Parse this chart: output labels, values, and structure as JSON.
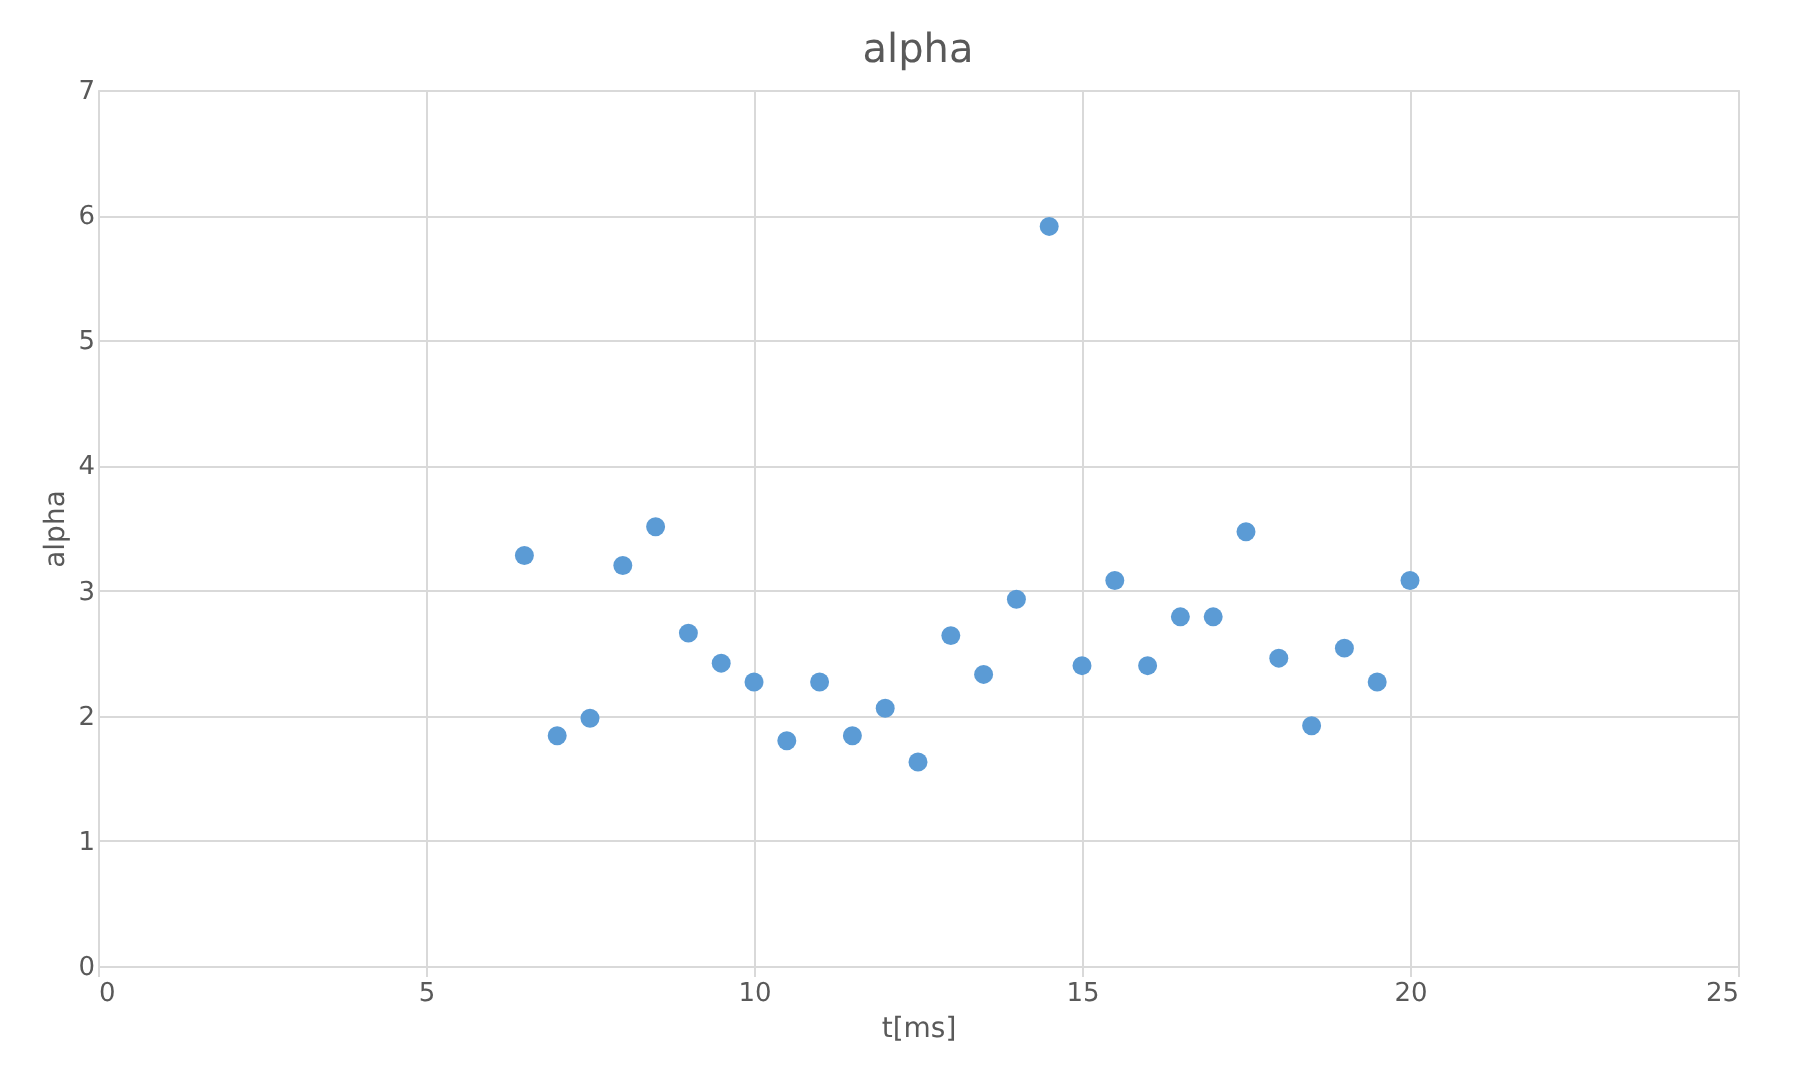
{
  "chart_data": {
    "type": "scatter",
    "title": "alpha",
    "xlabel": "t[ms]",
    "ylabel": "alpha",
    "x": [
      6.5,
      7,
      7.5,
      8,
      8.5,
      9,
      9.5,
      10,
      10.5,
      11,
      11.5,
      12,
      12.5,
      13,
      13.5,
      14,
      14.5,
      15,
      15.5,
      16,
      16.5,
      17,
      17.5,
      18,
      18.5,
      19,
      19.5,
      20
    ],
    "series": [
      {
        "color": "#5b9bd5",
        "values": [
          3.28,
          1.84,
          1.98,
          3.2,
          3.51,
          2.66,
          2.42,
          2.27,
          1.8,
          2.27,
          1.84,
          2.06,
          1.63,
          2.64,
          2.33,
          2.93,
          5.91,
          2.4,
          3.08,
          2.4,
          2.79,
          2.79,
          3.47,
          2.46,
          1.92,
          2.54,
          2.27,
          3.08
        ]
      }
    ],
    "xlim": [
      0,
      25
    ],
    "xticks": [
      0,
      5,
      10,
      15,
      20,
      25
    ],
    "ylim": [
      0,
      7
    ],
    "yticks": [
      0,
      1,
      2,
      3,
      4,
      5,
      6,
      7
    ],
    "grid": true,
    "marker": "circle",
    "legend": false
  }
}
